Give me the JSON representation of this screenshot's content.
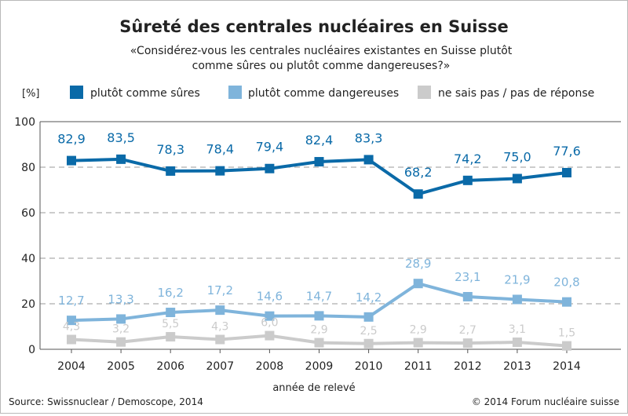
{
  "colors": {
    "sures": "#0a6aa8",
    "dangereuses": "#7fb4db",
    "nsp": "#cbcbcb",
    "gridline": "#9a9a9a",
    "text": "#222222"
  },
  "chart_data": {
    "type": "line",
    "title": "Sûreté des centrales nucléaires en Suisse",
    "subtitle_lines": [
      "«Considérez-vous les centrales nucléaires existantes en Suisse plutôt",
      "comme sûres ou plutôt comme dangereuses?»"
    ],
    "ylabel": "[%]",
    "xlabel": "année de relevé",
    "x": [
      "2004",
      "2005",
      "2006",
      "2007",
      "2008",
      "2009",
      "2010",
      "2011",
      "2012",
      "2013",
      "2014"
    ],
    "ylim": [
      0,
      100
    ],
    "yticks": [
      0,
      20,
      40,
      60,
      80,
      100
    ],
    "grid": true,
    "legend_position": "top",
    "series": [
      {
        "name": "plutôt comme sûres",
        "color_key": "sures",
        "values": [
          82.9,
          83.5,
          78.3,
          78.4,
          79.4,
          82.4,
          83.3,
          68.2,
          74.2,
          75.0,
          77.6
        ],
        "labels": [
          "82,9",
          "83,5",
          "78,3",
          "78,4",
          "79,4",
          "82,4",
          "83,3",
          "68,2",
          "74,2",
          "75,0",
          "77,6"
        ]
      },
      {
        "name": "plutôt comme dangereuses",
        "color_key": "dangereuses",
        "values": [
          12.7,
          13.3,
          16.2,
          17.2,
          14.6,
          14.7,
          14.2,
          28.9,
          23.1,
          21.9,
          20.8
        ],
        "labels": [
          "12,7",
          "13,3",
          "16,2",
          "17,2",
          "14,6",
          "14,7",
          "14,2",
          "28,9",
          "23,1",
          "21,9",
          "20,8"
        ]
      },
      {
        "name": "ne sais pas / pas de réponse",
        "color_key": "nsp",
        "values": [
          4.3,
          3.2,
          5.5,
          4.3,
          6.0,
          2.9,
          2.5,
          2.9,
          2.7,
          3.1,
          1.5
        ],
        "labels": [
          "4,3",
          "3,2",
          "5,5",
          "4,3",
          "6,0",
          "2,9",
          "2,5",
          "2,9",
          "2,7",
          "3,1",
          "1,5"
        ]
      }
    ],
    "source": "Source: Swissnuclear / Demoscope, 2014",
    "copyright": "© 2014 Forum nucléaire suisse"
  }
}
